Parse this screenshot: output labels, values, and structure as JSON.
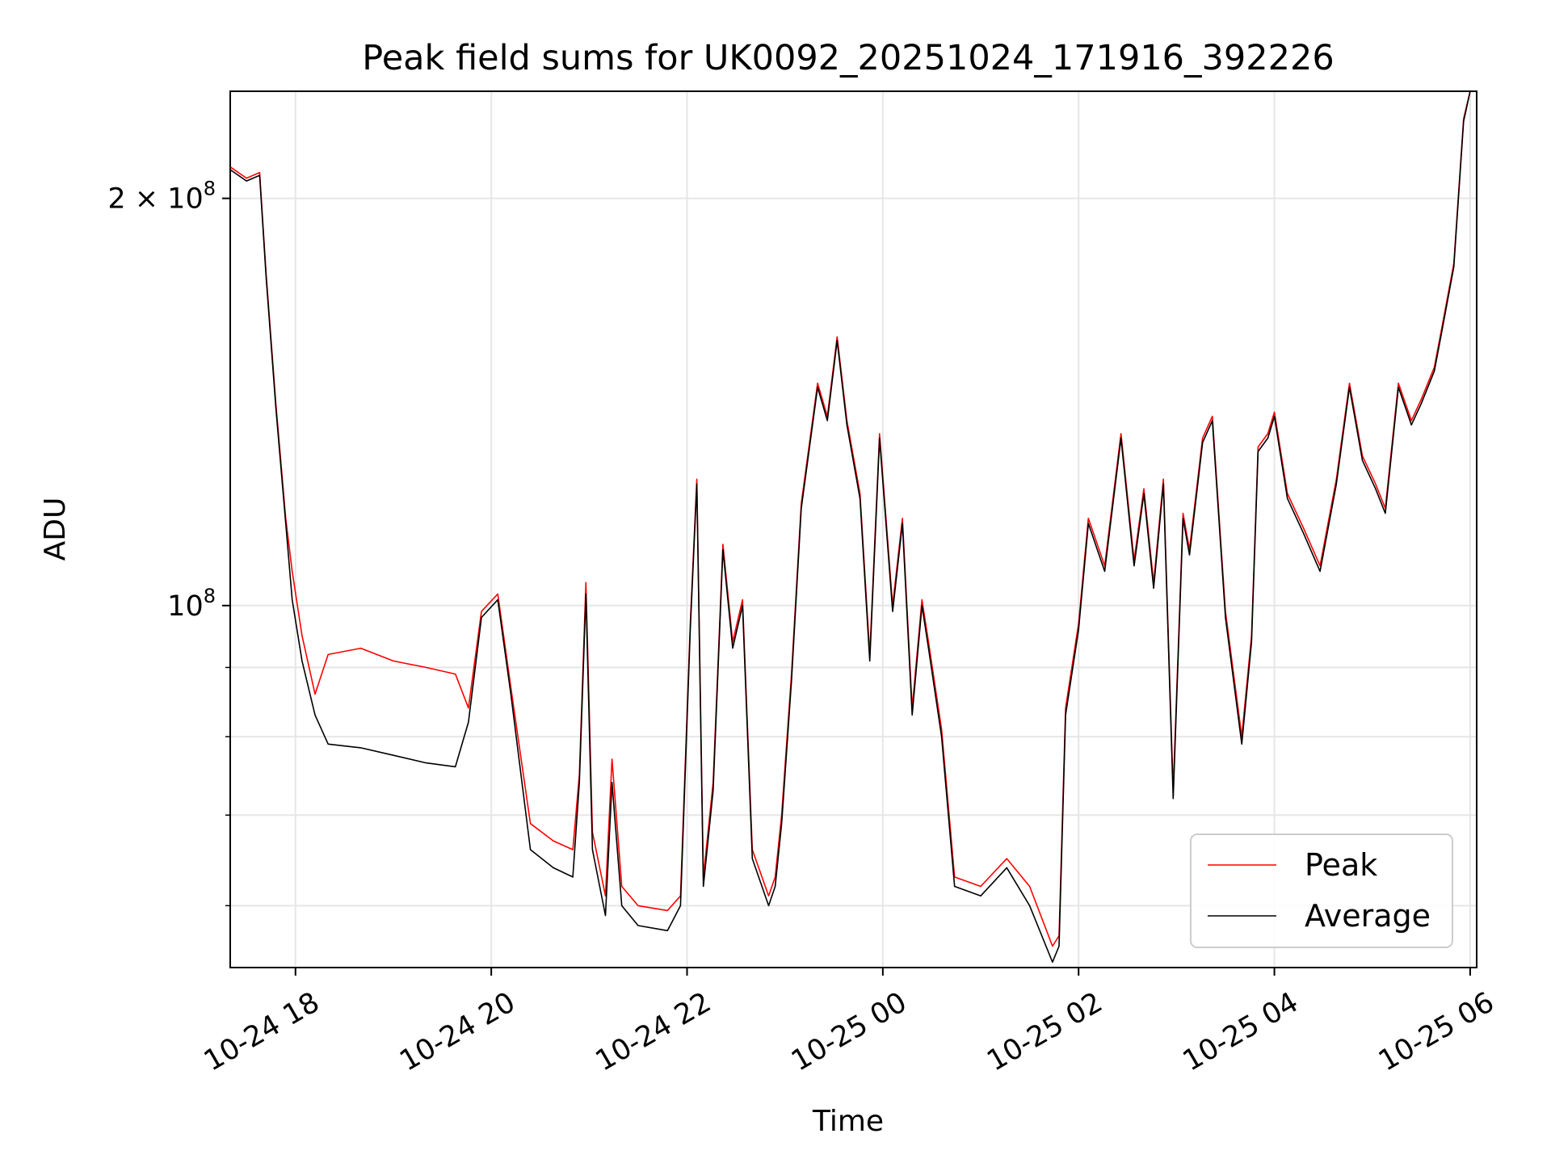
{
  "chart_data": {
    "type": "line",
    "title": "Peak field sums for UK0092_20251024_171916_392226",
    "xlabel": "Time",
    "ylabel": "ADU",
    "yscale": "log",
    "grid": true,
    "legend_position": "lower-right",
    "xlim": [
      "2025-10-24 17:20",
      "2025-10-25 06:04"
    ],
    "ylim": [
      54000000,
      240000000
    ],
    "x_ticks": [
      {
        "value": "2025-10-24 18:00",
        "label": "10-24 18"
      },
      {
        "value": "2025-10-24 20:00",
        "label": "10-24 20"
      },
      {
        "value": "2025-10-24 22:00",
        "label": "10-24 22"
      },
      {
        "value": "2025-10-25 00:00",
        "label": "10-25 00"
      },
      {
        "value": "2025-10-25 02:00",
        "label": "10-25 02"
      },
      {
        "value": "2025-10-25 04:00",
        "label": "10-25 04"
      },
      {
        "value": "2025-10-25 06:00",
        "label": "10-25 06"
      }
    ],
    "y_ticks": [
      {
        "value": 200000000,
        "base": "2 × 10",
        "exp": "8"
      },
      {
        "value": 100000000,
        "base": "10",
        "exp": "8"
      }
    ],
    "y_minor_ticks": [
      60000000,
      70000000,
      80000000,
      90000000
    ],
    "x": [
      "2025-10-24 17:20",
      "2025-10-24 17:30",
      "2025-10-24 17:38",
      "2025-10-24 17:42",
      "2025-10-24 17:48",
      "2025-10-24 17:54",
      "2025-10-24 17:58",
      "2025-10-24 18:04",
      "2025-10-24 18:12",
      "2025-10-24 18:20",
      "2025-10-24 18:40",
      "2025-10-24 19:00",
      "2025-10-24 19:20",
      "2025-10-24 19:38",
      "2025-10-24 19:46",
      "2025-10-24 19:54",
      "2025-10-24 20:04",
      "2025-10-24 20:12",
      "2025-10-24 20:24",
      "2025-10-24 20:38",
      "2025-10-24 20:50",
      "2025-10-24 20:54",
      "2025-10-24 20:58",
      "2025-10-24 21:02",
      "2025-10-24 21:10",
      "2025-10-24 21:14",
      "2025-10-24 21:20",
      "2025-10-24 21:30",
      "2025-10-24 21:48",
      "2025-10-24 21:56",
      "2025-10-24 22:02",
      "2025-10-24 22:06",
      "2025-10-24 22:10",
      "2025-10-24 22:16",
      "2025-10-24 22:22",
      "2025-10-24 22:28",
      "2025-10-24 22:34",
      "2025-10-24 22:40",
      "2025-10-24 22:50",
      "2025-10-24 22:54",
      "2025-10-24 22:58",
      "2025-10-24 23:04",
      "2025-10-24 23:10",
      "2025-10-24 23:20",
      "2025-10-24 23:26",
      "2025-10-24 23:32",
      "2025-10-24 23:38",
      "2025-10-24 23:46",
      "2025-10-24 23:52",
      "2025-10-24 23:58",
      "2025-10-25 00:06",
      "2025-10-25 00:12",
      "2025-10-25 00:18",
      "2025-10-25 00:24",
      "2025-10-25 00:28",
      "2025-10-25 00:36",
      "2025-10-25 00:44",
      "2025-10-25 01:00",
      "2025-10-25 01:16",
      "2025-10-25 01:30",
      "2025-10-25 01:44",
      "2025-10-25 01:48",
      "2025-10-25 01:52",
      "2025-10-25 02:00",
      "2025-10-25 02:06",
      "2025-10-25 02:16",
      "2025-10-25 02:26",
      "2025-10-25 02:34",
      "2025-10-25 02:40",
      "2025-10-25 02:46",
      "2025-10-25 02:52",
      "2025-10-25 02:58",
      "2025-10-25 03:04",
      "2025-10-25 03:08",
      "2025-10-25 03:16",
      "2025-10-25 03:22",
      "2025-10-25 03:30",
      "2025-10-25 03:40",
      "2025-10-25 03:46",
      "2025-10-25 03:50",
      "2025-10-25 03:56",
      "2025-10-25 04:00",
      "2025-10-25 04:08",
      "2025-10-25 04:18",
      "2025-10-25 04:28",
      "2025-10-25 04:38",
      "2025-10-25 04:46",
      "2025-10-25 04:54",
      "2025-10-25 05:02",
      "2025-10-25 05:08",
      "2025-10-25 05:16",
      "2025-10-25 05:24",
      "2025-10-25 05:30",
      "2025-10-25 05:38",
      "2025-10-25 05:42",
      "2025-10-25 05:50",
      "2025-10-25 05:56",
      "2025-10-25 06:00"
    ],
    "series": [
      {
        "name": "Average",
        "color": "#000000",
        "values": [
          210000000,
          206000000,
          208000000,
          175000000,
          140000000,
          115000000,
          101000000,
          91000000,
          83000000,
          79000000,
          78500000,
          77500000,
          76500000,
          76000000,
          82000000,
          98000000,
          101000000,
          86000000,
          66000000,
          64000000,
          63000000,
          74000000,
          102000000,
          66000000,
          59000000,
          74000000,
          60000000,
          58000000,
          57500000,
          60000000,
          96000000,
          123000000,
          62000000,
          73000000,
          110000000,
          93000000,
          100000000,
          65000000,
          60000000,
          62000000,
          69000000,
          88000000,
          118000000,
          145000000,
          137000000,
          157000000,
          136000000,
          120000000,
          91000000,
          133000000,
          99000000,
          115000000,
          83000000,
          100000000,
          93000000,
          80000000,
          62000000,
          61000000,
          64000000,
          60000000,
          54500000,
          56000000,
          83000000,
          96000000,
          115000000,
          106000000,
          133000000,
          107000000,
          121000000,
          103000000,
          123000000,
          72000000,
          116000000,
          109000000,
          132000000,
          137000000,
          98000000,
          79000000,
          94000000,
          130000000,
          133000000,
          138000000,
          120000000,
          113000000,
          106000000,
          123000000,
          145000000,
          128000000,
          122000000,
          117000000,
          145000000,
          136000000,
          141000000,
          149000000,
          158000000,
          178000000,
          228000000,
          240000000
        ]
      },
      {
        "name": "Peak",
        "color": "#ff0000",
        "values": [
          211000000,
          207000000,
          209000000,
          176000000,
          141000000,
          116000000,
          106000000,
          95000000,
          86000000,
          92000000,
          93000000,
          91000000,
          90000000,
          89000000,
          84000000,
          99000000,
          102000000,
          87000000,
          69000000,
          67000000,
          66000000,
          75000000,
          104000000,
          68000000,
          61000000,
          77000000,
          62000000,
          60000000,
          59500000,
          61000000,
          97000000,
          124000000,
          63000000,
          74000000,
          111000000,
          94000000,
          101000000,
          66000000,
          61000000,
          63000000,
          70000000,
          89000000,
          119000000,
          146000000,
          138000000,
          158000000,
          137000000,
          121000000,
          92000000,
          134000000,
          100000000,
          116000000,
          84000000,
          101000000,
          94000000,
          81000000,
          63000000,
          62000000,
          65000000,
          62000000,
          56000000,
          57000000,
          84000000,
          97000000,
          116000000,
          107000000,
          134000000,
          108000000,
          122000000,
          104000000,
          124000000,
          73000000,
          117000000,
          110000000,
          133000000,
          138000000,
          99000000,
          80000000,
          95000000,
          131000000,
          134000000,
          139000000,
          121000000,
          114000000,
          107000000,
          124000000,
          146000000,
          129000000,
          123000000,
          118000000,
          146000000,
          137000000,
          142000000,
          150000000,
          159000000,
          179000000,
          229000000,
          240000000
        ]
      }
    ]
  }
}
